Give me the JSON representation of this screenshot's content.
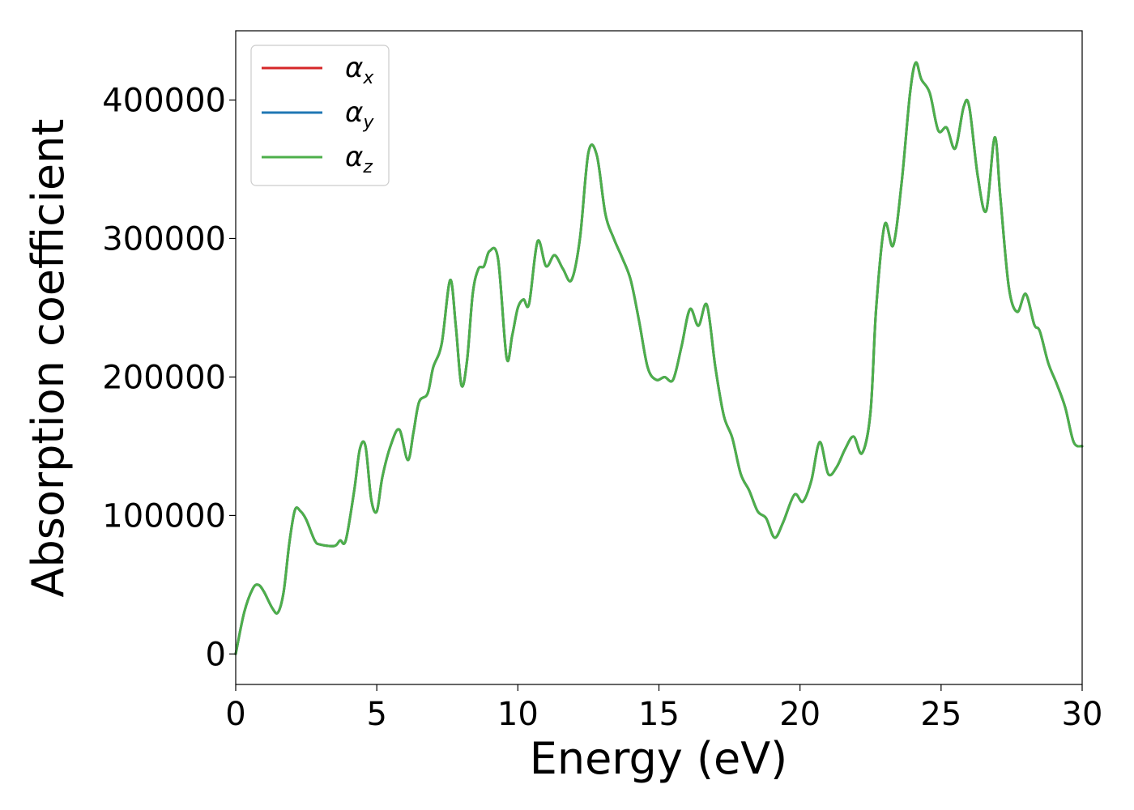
{
  "chart_data": {
    "type": "line",
    "xlabel": "Energy (eV)",
    "ylabel": "Absorption coefficient",
    "xlim": [
      0,
      30
    ],
    "ylim": [
      -22000,
      450000
    ],
    "xticks": [
      0,
      5,
      10,
      15,
      20,
      25,
      30
    ],
    "xtick_labels": [
      "0",
      "5",
      "10",
      "15",
      "20",
      "25",
      "30"
    ],
    "yticks": [
      0,
      100000,
      200000,
      300000,
      400000
    ],
    "ytick_labels": [
      "0",
      "100000",
      "200000",
      "300000",
      "400000"
    ],
    "grid": false,
    "legend_position": "top-left",
    "x": [
      0,
      0.3,
      0.6,
      0.8,
      1.0,
      1.3,
      1.5,
      1.7,
      1.9,
      2.1,
      2.3,
      2.5,
      2.8,
      3.0,
      3.5,
      3.7,
      3.9,
      4.2,
      4.4,
      4.6,
      4.8,
      5.0,
      5.2,
      5.5,
      5.8,
      6.1,
      6.3,
      6.5,
      6.8,
      7.0,
      7.3,
      7.6,
      7.8,
      8.0,
      8.2,
      8.4,
      8.6,
      8.8,
      9.0,
      9.3,
      9.6,
      9.8,
      10.0,
      10.2,
      10.4,
      10.7,
      11.0,
      11.3,
      11.6,
      11.9,
      12.2,
      12.5,
      12.8,
      13.1,
      13.4,
      13.7,
      14.0,
      14.3,
      14.6,
      14.9,
      15.2,
      15.5,
      15.8,
      16.1,
      16.4,
      16.7,
      17.0,
      17.3,
      17.6,
      17.9,
      18.2,
      18.5,
      18.8,
      19.1,
      19.4,
      19.8,
      20.1,
      20.4,
      20.7,
      21.0,
      21.3,
      21.6,
      21.9,
      22.2,
      22.5,
      22.7,
      23.0,
      23.3,
      23.6,
      23.9,
      24.1,
      24.3,
      24.6,
      24.9,
      25.2,
      25.5,
      25.8,
      26.0,
      26.3,
      26.6,
      26.9,
      27.1,
      27.4,
      27.7,
      28.0,
      28.3,
      28.5,
      28.8,
      29.1,
      29.4,
      29.7,
      30.0
    ],
    "series": [
      {
        "name": "αx",
        "color": "#d62728",
        "y": [
          0,
          30000,
          47000,
          50000,
          45000,
          33000,
          30000,
          45000,
          80000,
          104000,
          103000,
          97000,
          82000,
          79000,
          78000,
          82000,
          82000,
          118000,
          148000,
          150000,
          112000,
          103000,
          128000,
          151000,
          162000,
          140000,
          160000,
          182000,
          188000,
          207000,
          224000,
          270000,
          237000,
          194000,
          212000,
          260000,
          278000,
          280000,
          291000,
          285000,
          214000,
          230000,
          250000,
          256000,
          253000,
          298000,
          280000,
          288000,
          278000,
          270000,
          300000,
          362000,
          360000,
          318000,
          300000,
          286000,
          270000,
          240000,
          207000,
          198000,
          200000,
          198000,
          222000,
          249000,
          237000,
          252000,
          207000,
          172000,
          156000,
          130000,
          118000,
          103000,
          98000,
          84000,
          95000,
          115000,
          110000,
          125000,
          153000,
          130000,
          135000,
          148000,
          157000,
          145000,
          175000,
          250000,
          310000,
          295000,
          340000,
          405000,
          427000,
          415000,
          405000,
          378000,
          380000,
          365000,
          395000,
          395000,
          345000,
          320000,
          373000,
          330000,
          265000,
          247000,
          260000,
          238000,
          233000,
          210000,
          195000,
          178000,
          153000,
          150000
        ]
      },
      {
        "name": "αy",
        "color": "#1f77b4",
        "y": [
          0,
          30000,
          47000,
          50000,
          45000,
          33000,
          30000,
          45000,
          80000,
          104000,
          103000,
          97000,
          82000,
          79000,
          78000,
          82000,
          82000,
          118000,
          148000,
          150000,
          112000,
          103000,
          128000,
          151000,
          162000,
          140000,
          160000,
          182000,
          188000,
          207000,
          224000,
          270000,
          237000,
          194000,
          212000,
          260000,
          278000,
          280000,
          291000,
          285000,
          214000,
          230000,
          250000,
          256000,
          253000,
          298000,
          280000,
          288000,
          278000,
          270000,
          300000,
          362000,
          360000,
          318000,
          300000,
          286000,
          270000,
          240000,
          207000,
          198000,
          200000,
          198000,
          222000,
          249000,
          237000,
          252000,
          207000,
          172000,
          156000,
          130000,
          118000,
          103000,
          98000,
          84000,
          95000,
          115000,
          110000,
          125000,
          153000,
          130000,
          135000,
          148000,
          157000,
          145000,
          175000,
          250000,
          310000,
          295000,
          340000,
          405000,
          427000,
          415000,
          405000,
          378000,
          380000,
          365000,
          395000,
          395000,
          345000,
          320000,
          373000,
          330000,
          265000,
          247000,
          260000,
          238000,
          233000,
          210000,
          195000,
          178000,
          153000,
          150000
        ]
      },
      {
        "name": "αz",
        "color": "#4daf4a",
        "y": [
          0,
          30000,
          47000,
          50000,
          45000,
          33000,
          30000,
          45000,
          80000,
          104000,
          103000,
          97000,
          82000,
          79000,
          78000,
          82000,
          82000,
          118000,
          148000,
          150000,
          112000,
          103000,
          128000,
          151000,
          162000,
          140000,
          160000,
          182000,
          188000,
          207000,
          224000,
          270000,
          237000,
          194000,
          212000,
          260000,
          278000,
          280000,
          291000,
          285000,
          214000,
          230000,
          250000,
          256000,
          253000,
          298000,
          280000,
          288000,
          278000,
          270000,
          300000,
          362000,
          360000,
          318000,
          300000,
          286000,
          270000,
          240000,
          207000,
          198000,
          200000,
          198000,
          222000,
          249000,
          237000,
          252000,
          207000,
          172000,
          156000,
          130000,
          118000,
          103000,
          98000,
          84000,
          95000,
          115000,
          110000,
          125000,
          153000,
          130000,
          135000,
          148000,
          157000,
          145000,
          175000,
          250000,
          310000,
          295000,
          340000,
          405000,
          427000,
          415000,
          405000,
          378000,
          380000,
          365000,
          395000,
          395000,
          345000,
          320000,
          373000,
          330000,
          265000,
          247000,
          260000,
          238000,
          233000,
          210000,
          195000,
          178000,
          153000,
          150000
        ]
      }
    ],
    "legend": [
      {
        "symbol": "α",
        "sub": "x",
        "color": "#d62728"
      },
      {
        "symbol": "α",
        "sub": "y",
        "color": "#1f77b4"
      },
      {
        "symbol": "α",
        "sub": "z",
        "color": "#4daf4a"
      }
    ]
  }
}
